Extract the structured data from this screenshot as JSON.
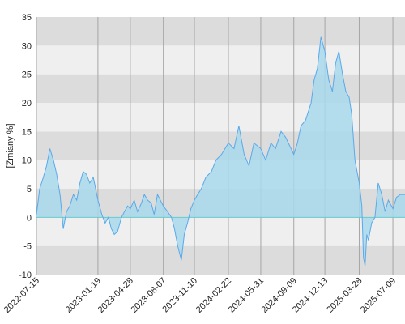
{
  "chart_data": {
    "type": "area",
    "title": "",
    "xlabel": "",
    "ylabel": "[Zmiany %]",
    "ylim": [
      -10,
      35
    ],
    "xlim": [
      "2022-07-15",
      "2025-08-15"
    ],
    "y_ticks": [
      -10,
      -5,
      0,
      5,
      10,
      15,
      20,
      25,
      30,
      35
    ],
    "y_tick_labels": [
      "-10",
      "-5",
      "0",
      "5",
      "10",
      "15",
      "20",
      "25",
      "30",
      "35"
    ],
    "x_ticks": [
      "2022-07-15",
      "2023-01-19",
      "2023-04-28",
      "2023-08-07",
      "2023-11-10",
      "2024-02-22",
      "2024-05-31",
      "2024-09-09",
      "2024-12-13",
      "2025-03-28",
      "2025-07-09"
    ],
    "x_tick_labels": [
      "2022-07-15",
      "2023-01-19",
      "2023-04-28",
      "2023-08-07",
      "2023-11-10",
      "2024-02-22",
      "2024-05-31",
      "2024-09-09",
      "2024-12-13",
      "2025-03-28",
      "2025-07-09"
    ],
    "grid": true,
    "colors": {
      "line": "#5aa9ea",
      "fill": "#a8d8ec",
      "band_light": "#efefef",
      "band_dark": "#dcdcdc",
      "zero_line": "#66cccc",
      "vgrid": "#a6a6a6"
    },
    "series": [
      {
        "x": [
          "2022-07-15",
          "2022-07-25",
          "2022-08-05",
          "2022-08-15",
          "2022-08-25",
          "2022-09-05",
          "2022-09-15",
          "2022-09-25",
          "2022-10-05",
          "2022-10-15",
          "2022-10-25",
          "2022-11-05",
          "2022-11-15",
          "2022-11-25",
          "2022-12-05",
          "2022-12-15",
          "2022-12-25",
          "2023-01-05",
          "2023-01-19",
          "2023-01-31",
          "2023-02-10",
          "2023-02-20",
          "2023-03-01",
          "2023-03-10",
          "2023-03-20",
          "2023-04-01",
          "2023-04-10",
          "2023-04-20",
          "2023-04-28",
          "2023-05-10",
          "2023-05-20",
          "2023-06-01",
          "2023-06-10",
          "2023-06-20",
          "2023-07-01",
          "2023-07-10",
          "2023-07-20",
          "2023-08-07",
          "2023-08-20",
          "2023-09-01",
          "2023-09-10",
          "2023-09-20",
          "2023-10-01",
          "2023-10-10",
          "2023-10-20",
          "2023-10-30",
          "2023-11-10",
          "2023-11-20",
          "2023-12-01",
          "2023-12-15",
          "2024-01-01",
          "2024-01-15",
          "2024-02-01",
          "2024-02-22",
          "2024-03-10",
          "2024-03-25",
          "2024-04-10",
          "2024-04-25",
          "2024-05-10",
          "2024-05-31",
          "2024-06-15",
          "2024-07-01",
          "2024-07-15",
          "2024-08-01",
          "2024-08-15",
          "2024-09-09",
          "2024-09-20",
          "2024-10-01",
          "2024-10-15",
          "2024-11-01",
          "2024-11-10",
          "2024-11-20",
          "2024-12-01",
          "2024-12-13",
          "2024-12-25",
          "2025-01-05",
          "2025-01-15",
          "2025-01-25",
          "2025-02-05",
          "2025-02-15",
          "2025-02-25",
          "2025-03-05",
          "2025-03-15",
          "2025-03-28",
          "2025-04-05",
          "2025-04-10",
          "2025-04-15",
          "2025-04-20",
          "2025-04-25",
          "2025-05-05",
          "2025-05-15",
          "2025-05-25",
          "2025-06-05",
          "2025-06-15",
          "2025-06-25",
          "2025-07-09",
          "2025-07-20",
          "2025-08-01",
          "2025-08-15"
        ],
        "values": [
          0.5,
          5.0,
          7.0,
          9.0,
          12.0,
          10.0,
          7.5,
          4.0,
          -2.0,
          1.0,
          2.0,
          4.0,
          3.0,
          6.0,
          8.0,
          7.5,
          6.0,
          7.0,
          3.0,
          0.5,
          -1.0,
          0.0,
          -2.0,
          -3.0,
          -2.5,
          0.0,
          1.0,
          2.0,
          1.5,
          3.0,
          1.0,
          2.5,
          4.0,
          3.0,
          2.5,
          0.5,
          4.0,
          2.0,
          1.0,
          0.0,
          -2.0,
          -5.0,
          -7.5,
          -3.0,
          -1.0,
          1.5,
          3.0,
          4.0,
          5.0,
          7.0,
          8.0,
          10.0,
          11.0,
          13.0,
          12.0,
          16.0,
          11.0,
          9.0,
          13.0,
          12.0,
          10.0,
          13.0,
          12.0,
          15.0,
          14.0,
          11.0,
          13.0,
          16.0,
          17.0,
          20.0,
          24.0,
          26.0,
          31.5,
          29.0,
          24.0,
          22.0,
          27.0,
          29.0,
          25.0,
          22.0,
          21.0,
          18.0,
          10.0,
          6.0,
          2.0,
          -7.0,
          -8.5,
          -3.0,
          -4.0,
          -1.0,
          0.0,
          6.0,
          4.0,
          1.0,
          3.0,
          1.5,
          3.5,
          4.0,
          4.0
        ]
      }
    ]
  }
}
